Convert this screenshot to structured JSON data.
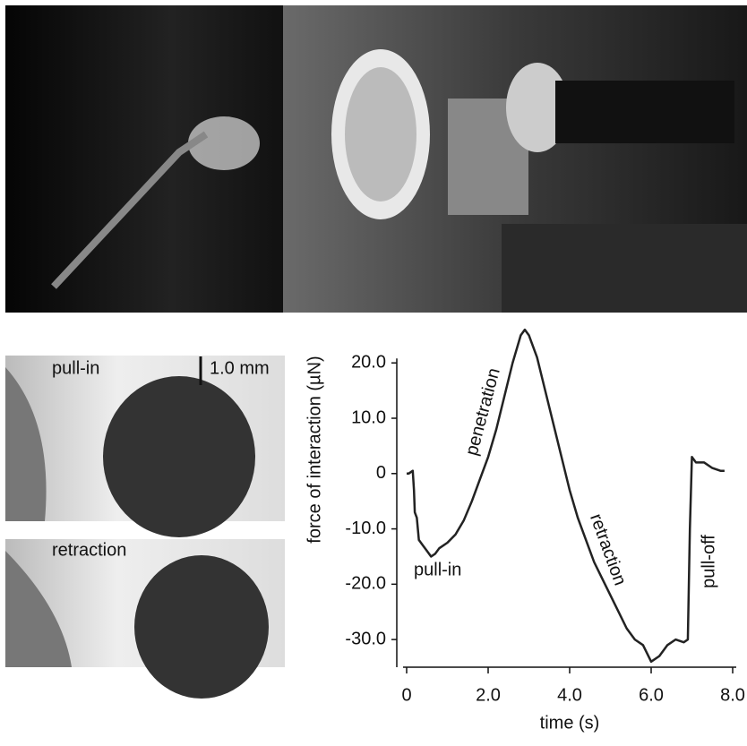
{
  "chart_data": {
    "type": "line",
    "xlabel": "time (s)",
    "ylabel": "force of interaction (µN)",
    "x": [
      0.0,
      0.05,
      0.15,
      0.18,
      0.2,
      0.25,
      0.3,
      0.4,
      0.5,
      0.6,
      0.7,
      0.8,
      1.0,
      1.2,
      1.4,
      1.6,
      1.8,
      2.0,
      2.2,
      2.4,
      2.6,
      2.8,
      2.9,
      3.0,
      3.2,
      3.4,
      3.6,
      3.8,
      4.0,
      4.2,
      4.4,
      4.6,
      4.8,
      5.0,
      5.2,
      5.4,
      5.6,
      5.8,
      6.0,
      6.2,
      6.4,
      6.6,
      6.8,
      6.9,
      6.95,
      7.0,
      7.1,
      7.3,
      7.5,
      7.7,
      7.8
    ],
    "series": [
      {
        "name": "force",
        "color": "#222222",
        "values": [
          0,
          0,
          0.5,
          -3,
          -7,
          -8,
          -12,
          -13,
          -14,
          -15,
          -14.5,
          -13.5,
          -12.5,
          -11,
          -8.5,
          -5,
          -1,
          3,
          8,
          14,
          20,
          25,
          26,
          25,
          21,
          15,
          9,
          3,
          -3,
          -8,
          -12,
          -16,
          -19,
          -22,
          -25,
          -28,
          -30,
          -31,
          -34,
          -33,
          -31,
          -30,
          -30.5,
          -30,
          -10,
          3,
          2,
          2,
          1,
          0.5,
          0.5
        ]
      }
    ],
    "xlim": [
      0,
      8
    ],
    "ylim": [
      -35,
      27
    ],
    "xticks": [
      0,
      {
        "value": 2,
        "label": "2.0"
      },
      {
        "value": 4,
        "label": "4.0"
      },
      {
        "value": 6,
        "label": "6.0"
      },
      {
        "value": 8,
        "label": "8.0"
      }
    ],
    "yticks": [
      {
        "value": 20,
        "label": "20.0"
      },
      {
        "value": 10,
        "label": "10.0"
      },
      0,
      {
        "value": -10,
        "label": "-10.0"
      },
      {
        "value": -20,
        "label": "-20.0"
      },
      {
        "value": -30,
        "label": "-30.0"
      }
    ],
    "annotations": [
      "pull-in",
      "penetration",
      "retraction",
      "pull-off"
    ]
  },
  "photos": {
    "labels": [
      "pull-in",
      "retraction"
    ],
    "scale_bar": "1.0 mm"
  }
}
